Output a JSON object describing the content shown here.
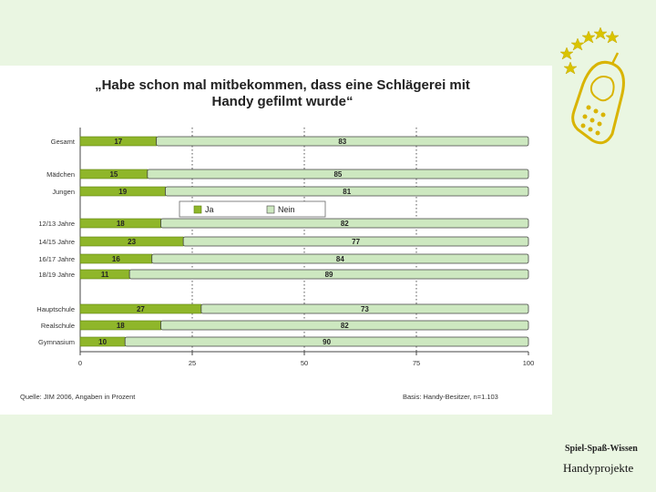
{
  "title_line1": "„Habe schon mal mitbekommen, dass eine Schlägerei mit",
  "title_line2": "Handy gefilmt wurde“",
  "footer_source": "Quelle: JIM 2006, Angaben in Prozent",
  "footer_base": "Basis: Handy-Besitzer, n=1.103",
  "brand_tagline": "Spiel-Spaß-Wissen",
  "brand_name": "Handyprojekte",
  "colors": {
    "ja": "#8fb62a",
    "nein": "#cde8c0",
    "band": "#eaf6e2"
  },
  "chart_data": {
    "type": "bar",
    "orientation": "horizontal",
    "stacked": true,
    "categories": [
      "Gesamt",
      "Mädchen",
      "Jungen",
      "12/13 Jahre",
      "14/15 Jahre",
      "16/17 Jahre",
      "18/19 Jahre",
      "Hauptschule",
      "Realschule",
      "Gymnasium"
    ],
    "series": [
      {
        "name": "Ja",
        "values": [
          17,
          15,
          19,
          18,
          23,
          16,
          11,
          27,
          18,
          10
        ]
      },
      {
        "name": "Nein",
        "values": [
          83,
          85,
          81,
          82,
          77,
          84,
          89,
          73,
          82,
          90
        ]
      }
    ],
    "xlim": [
      0,
      100
    ],
    "xticks": [
      0,
      25,
      50,
      75,
      100
    ],
    "legend_position": "inside-center-left"
  }
}
